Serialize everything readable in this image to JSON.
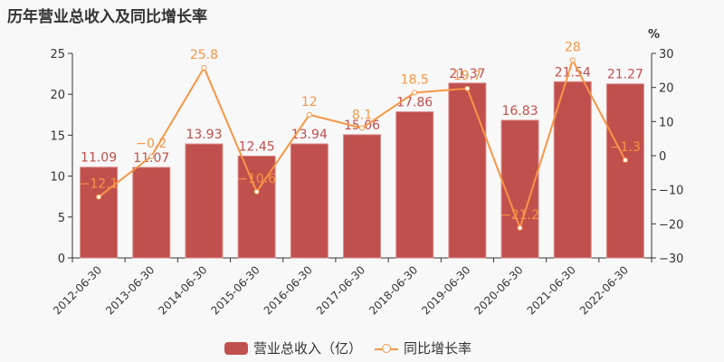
{
  "title": "历年营业总收入及同比增长率",
  "legend": {
    "bar_label": "营业总收入（亿）",
    "line_label": "同比增长率"
  },
  "colors": {
    "bar": "#c0504d",
    "line": "#f79646",
    "axis": "#333333",
    "bar_label": "#c0504d",
    "line_label": "#f79646"
  },
  "chart_data": {
    "type": "bar+line",
    "title": "历年营业总收入及同比增长率",
    "categories": [
      "2012-06-30",
      "2013-06-30",
      "2014-06-30",
      "2015-06-30",
      "2016-06-30",
      "2017-06-30",
      "2018-06-30",
      "2019-06-30",
      "2020-06-30",
      "2021-06-30",
      "2022-06-30"
    ],
    "series": [
      {
        "name": "营业总收入（亿）",
        "type": "bar",
        "axis": "left",
        "values": [
          11.09,
          11.07,
          13.93,
          12.45,
          13.94,
          15.06,
          17.86,
          21.37,
          16.83,
          21.54,
          21.27
        ]
      },
      {
        "name": "同比增长率",
        "type": "line",
        "axis": "right",
        "values": [
          -12.1,
          -0.2,
          25.8,
          -10.6,
          12,
          8.1,
          18.5,
          19.7,
          -21.2,
          28,
          -1.3
        ]
      }
    ],
    "left_axis": {
      "min": 0,
      "max": 25,
      "ticks": [
        0,
        5,
        10,
        15,
        20,
        25
      ]
    },
    "right_axis": {
      "min": -30,
      "max": 30,
      "ticks": [
        -30,
        -20,
        -10,
        0,
        10,
        20,
        30
      ],
      "unit": "%"
    },
    "legend_position": "bottom",
    "grid": false
  }
}
